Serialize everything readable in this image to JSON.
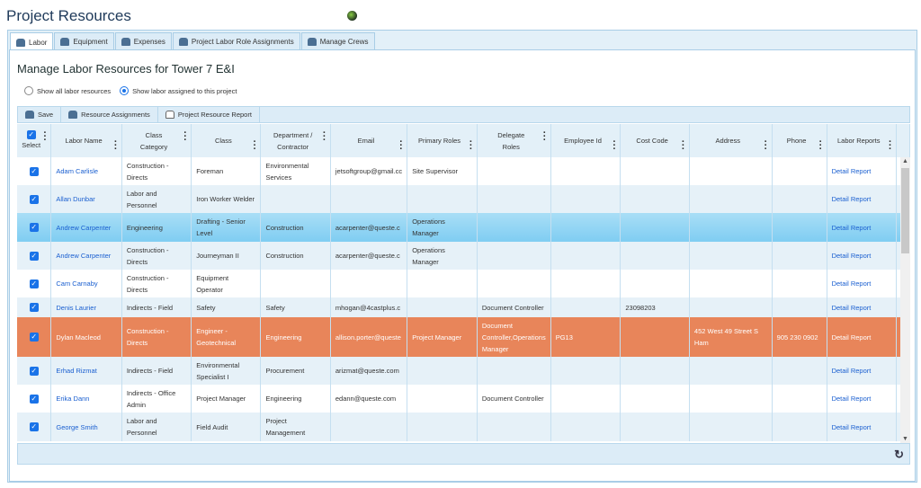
{
  "page_title": "Project Resources",
  "tabs": [
    {
      "label": "Labor",
      "icon": "labor-icon"
    },
    {
      "label": "Equipment",
      "icon": "equipment-icon"
    },
    {
      "label": "Expenses",
      "icon": "expenses-icon"
    },
    {
      "label": "Project Labor Role Assignments",
      "icon": "person-icon"
    },
    {
      "label": "Manage Crews",
      "icon": "crew-icon"
    }
  ],
  "subtitle": "Manage Labor Resources for Tower 7 E&I",
  "radios": [
    {
      "label": "Show all labor resources",
      "checked": false
    },
    {
      "label": "Show labor assigned to this project",
      "checked": true
    }
  ],
  "toolbar": {
    "save": "Save",
    "resource_assignments": "Resource Assignments",
    "project_resource_report": "Project Resource Report"
  },
  "columns": [
    "Select",
    "Labor Name",
    "Class Category",
    "Class",
    "Department / Contractor",
    "Email",
    "Primary Roles",
    "Delegate Roles",
    "Employee Id",
    "Cost Code",
    "Address",
    "Phone",
    "Labor Reports"
  ],
  "rows": [
    {
      "name": "Adam Carlisle",
      "category": "Construction - Directs",
      "class": "Foreman",
      "dept": "Environmental Services",
      "email": "jetsoftgroup@gmail.cc",
      "primary": "Site Supervisor",
      "delegate": "",
      "empid": "",
      "cost": "",
      "address": "",
      "phone": "",
      "report": "Detail Report",
      "state": "odd"
    },
    {
      "name": "Allan Dunbar",
      "category": "Labor and Personnel",
      "class": "Iron Worker Welder",
      "dept": "",
      "email": "",
      "primary": "",
      "delegate": "",
      "empid": "",
      "cost": "",
      "address": "",
      "phone": "",
      "report": "Detail Report",
      "state": "even"
    },
    {
      "name": "Andrew Carpenter",
      "category": "Engineering",
      "class": "Drafting - Senior Level",
      "dept": "Construction",
      "email": "acarpenter@queste.c",
      "primary": "Operations Manager",
      "delegate": "",
      "empid": "",
      "cost": "",
      "address": "",
      "phone": "",
      "report": "Detail Report",
      "state": "sel"
    },
    {
      "name": "Andrew Carpenter",
      "category": "Construction - Directs",
      "class": "Journeyman II",
      "dept": "Construction",
      "email": "acarpenter@queste.c",
      "primary": "Operations Manager",
      "delegate": "",
      "empid": "",
      "cost": "",
      "address": "",
      "phone": "",
      "report": "Detail Report",
      "state": "even"
    },
    {
      "name": "Cam Carnaby",
      "category": "Construction - Directs",
      "class": "Equipment Operator",
      "dept": "",
      "email": "",
      "primary": "",
      "delegate": "",
      "empid": "",
      "cost": "",
      "address": "",
      "phone": "",
      "report": "Detail Report",
      "state": "odd"
    },
    {
      "name": "Denis Laurier",
      "category": "Indirects - Field",
      "class": "Safety",
      "dept": "Safety",
      "email": "mhogan@4castplus.c",
      "primary": "",
      "delegate": "Document Controller",
      "empid": "",
      "cost": "23098203",
      "address": "",
      "phone": "",
      "report": "Detail Report",
      "state": "even"
    },
    {
      "name": "Dylan Macleod",
      "category": "Construction - Directs",
      "class": "Engineer - Geotechnical",
      "dept": "Engineering",
      "email": "allison.porter@queste",
      "primary": "Project Manager",
      "delegate": "Document Controller,Operations Manager",
      "empid": "PG13",
      "cost": "",
      "address": "452 West 49 Street S Ham",
      "phone": "905 230 0902",
      "report": "Detail Report",
      "state": "hot"
    },
    {
      "name": "Erhad Rizmat",
      "category": "Indirects - Field",
      "class": "Environmental Specialist I",
      "dept": "Procurement",
      "email": "arizmat@queste.com",
      "primary": "",
      "delegate": "",
      "empid": "",
      "cost": "",
      "address": "",
      "phone": "",
      "report": "Detail Report",
      "state": "even"
    },
    {
      "name": "Erika Dann",
      "category": "Indirects - Office Admin",
      "class": "Project Manager",
      "dept": "Engineering",
      "email": "edann@queste.com",
      "primary": "",
      "delegate": "Document Controller",
      "empid": "",
      "cost": "",
      "address": "",
      "phone": "",
      "report": "Detail Report",
      "state": "odd"
    },
    {
      "name": "George Smith",
      "category": "Labor and Personnel",
      "class": "Field Audit",
      "dept": "Project Management",
      "email": "",
      "primary": "",
      "delegate": "",
      "empid": "",
      "cost": "",
      "address": "",
      "phone": "",
      "report": "Detail Report",
      "state": "even"
    }
  ],
  "colors": {
    "selected_row": "#7fcdf2",
    "highlight_row": "#e8855a",
    "link": "#1a5fd0",
    "accent": "#1a73e8"
  }
}
